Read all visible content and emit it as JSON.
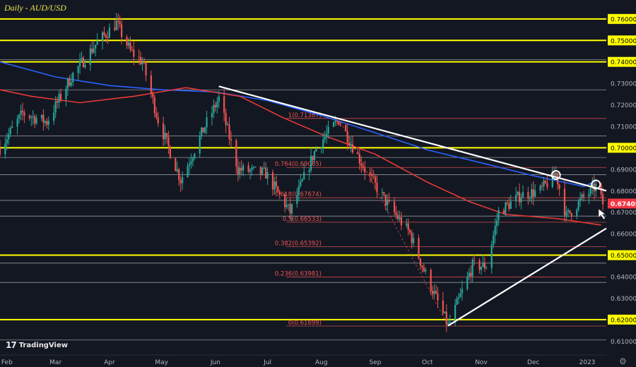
{
  "header": {
    "title": "Daily - AUD/USD"
  },
  "branding": {
    "logo_text": "TradingView",
    "logo_mark": "17"
  },
  "icons": {
    "settings": "gear-icon",
    "cursor": "cursor-arrow-icon"
  },
  "colors": {
    "background": "#131722",
    "up_candle": "#26a69a",
    "down_candle": "#ef5350",
    "yellow_level": "#ffff00",
    "ma_fast": "#e53935",
    "ma_slow": "#2962ff",
    "fib": "#ef5350",
    "trendline": "#ffffff",
    "price_badge": "#f23645"
  },
  "chart_data": {
    "type": "candlestick",
    "title": "Daily - AUD/USD",
    "ylim": [
      0.6045,
      0.7675
    ],
    "y_ticks": [
      "0.76000",
      "0.75000",
      "0.74000",
      "0.73000",
      "0.72000",
      "0.71000",
      "0.70000",
      "0.69000",
      "0.68000",
      "0.67000",
      "0.66000",
      "0.65000",
      "0.64000",
      "0.63000",
      "0.62000",
      "0.61000"
    ],
    "x_labels": [
      "Feb",
      "Mar",
      "Apr",
      "May",
      "Jun",
      "Jul",
      "Aug",
      "Sep",
      "Oct",
      "Nov",
      "Dec",
      "2023"
    ],
    "x_range": [
      "2022-01-28",
      "2023-01-12"
    ],
    "current_price": "0.67405",
    "price_path": [
      [
        "2022-01-28",
        0.7
      ],
      [
        "2022-02-10",
        0.716
      ],
      [
        "2022-02-24",
        0.712
      ],
      [
        "2022-03-10",
        0.733
      ],
      [
        "2022-03-24",
        0.748
      ],
      [
        "2022-04-05",
        0.758
      ],
      [
        "2022-04-13",
        0.745
      ],
      [
        "2022-04-20",
        0.74
      ],
      [
        "2022-04-29",
        0.713
      ],
      [
        "2022-05-12",
        0.685
      ],
      [
        "2022-05-26",
        0.71
      ],
      [
        "2022-06-03",
        0.723
      ],
      [
        "2022-06-14",
        0.69
      ],
      [
        "2022-06-30",
        0.688
      ],
      [
        "2022-07-14",
        0.67
      ],
      [
        "2022-07-29",
        0.7
      ],
      [
        "2022-08-11",
        0.713
      ],
      [
        "2022-08-26",
        0.69
      ],
      [
        "2022-09-07",
        0.675
      ],
      [
        "2022-09-21",
        0.66
      ],
      [
        "2022-09-29",
        0.643
      ],
      [
        "2022-10-13",
        0.617
      ],
      [
        "2022-10-27",
        0.645
      ],
      [
        "2022-11-04",
        0.645
      ],
      [
        "2022-11-11",
        0.67
      ],
      [
        "2022-11-24",
        0.678
      ],
      [
        "2022-12-05",
        0.68
      ],
      [
        "2022-12-14",
        0.688
      ],
      [
        "2022-12-20",
        0.668
      ],
      [
        "2022-12-30",
        0.677
      ],
      [
        "2023-01-06",
        0.682
      ],
      [
        "2023-01-10",
        0.674
      ]
    ],
    "horizontal_levels": [
      {
        "price": 0.76,
        "label": "0.76000",
        "style": "yellow"
      },
      {
        "price": 0.75,
        "label": "0.75000",
        "style": "yellow"
      },
      {
        "price": 0.74,
        "label": "0.74000",
        "style": "yellow"
      },
      {
        "price": 0.7,
        "label": "0.70000",
        "style": "yellow"
      },
      {
        "price": 0.65,
        "label": "0.65000",
        "style": "yellow"
      },
      {
        "price": 0.62,
        "label": "0.62000",
        "style": "yellow"
      },
      {
        "price": 0.741,
        "style": "white"
      },
      {
        "price": 0.727,
        "style": "white"
      },
      {
        "price": 0.7055,
        "style": "white"
      },
      {
        "price": 0.6955,
        "style": "white"
      },
      {
        "price": 0.6875,
        "style": "white"
      },
      {
        "price": 0.6755,
        "style": "white"
      },
      {
        "price": 0.6682,
        "style": "white"
      },
      {
        "price": 0.6463,
        "style": "white"
      },
      {
        "price": 0.6373,
        "style": "white"
      },
      {
        "price": 0.6105,
        "style": "white"
      }
    ],
    "fib_levels": [
      {
        "label": "1(0.71367)",
        "price": 0.71367
      },
      {
        "label": "0.764(0.69085)",
        "price": 0.69085
      },
      {
        "label": "0.618(0.67674)",
        "price": 0.67674
      },
      {
        "label": "0.5(0.66533)",
        "price": 0.66533
      },
      {
        "label": "0.382(0.65392)",
        "price": 0.65392
      },
      {
        "label": "0.236(0.63981)",
        "price": 0.63981
      },
      {
        "label": "0(0.61699)",
        "price": 0.61699
      }
    ],
    "ma_slow_path": [
      [
        "2022-01-28",
        0.74
      ],
      [
        "2022-03-01",
        0.733
      ],
      [
        "2022-04-01",
        0.729
      ],
      [
        "2022-05-01",
        0.727
      ],
      [
        "2022-06-01",
        0.726
      ],
      [
        "2022-07-01",
        0.722
      ],
      [
        "2022-08-01",
        0.715
      ],
      [
        "2022-09-01",
        0.707
      ],
      [
        "2022-10-01",
        0.699
      ],
      [
        "2022-11-01",
        0.693
      ],
      [
        "2022-12-01",
        0.687
      ],
      [
        "2022-12-30",
        0.682
      ],
      [
        "2023-01-06",
        0.6845
      ]
    ],
    "ma_fast_path": [
      [
        "2022-01-28",
        0.727
      ],
      [
        "2022-02-15",
        0.724
      ],
      [
        "2022-03-15",
        0.721
      ],
      [
        "2022-04-15",
        0.724
      ],
      [
        "2022-05-15",
        0.728
      ],
      [
        "2022-06-15",
        0.724
      ],
      [
        "2022-07-10",
        0.714
      ],
      [
        "2022-08-05",
        0.705
      ],
      [
        "2022-09-01",
        0.697
      ],
      [
        "2022-10-01",
        0.684
      ],
      [
        "2022-10-25",
        0.675
      ],
      [
        "2022-11-15",
        0.669
      ],
      [
        "2022-12-15",
        0.667
      ],
      [
        "2023-01-09",
        0.664
      ]
    ],
    "trendlines": [
      {
        "name": "descending",
        "from": [
          "2022-06-03",
          0.7286
        ],
        "to": [
          "2023-01-12",
          0.68
        ]
      },
      {
        "name": "ascending",
        "from": [
          "2022-10-13",
          0.6172
        ],
        "to": [
          "2023-01-12",
          0.6625
        ]
      }
    ],
    "fib_swing": {
      "from": [
        "2022-08-11",
        0.71367
      ],
      "to": [
        "2022-10-13",
        0.61699
      ]
    },
    "touch_markers": [
      [
        "2022-12-14",
        0.6873
      ],
      [
        "2023-01-06",
        0.6829
      ]
    ],
    "arrow_at": [
      "2023-01-06",
      0.674
    ]
  }
}
